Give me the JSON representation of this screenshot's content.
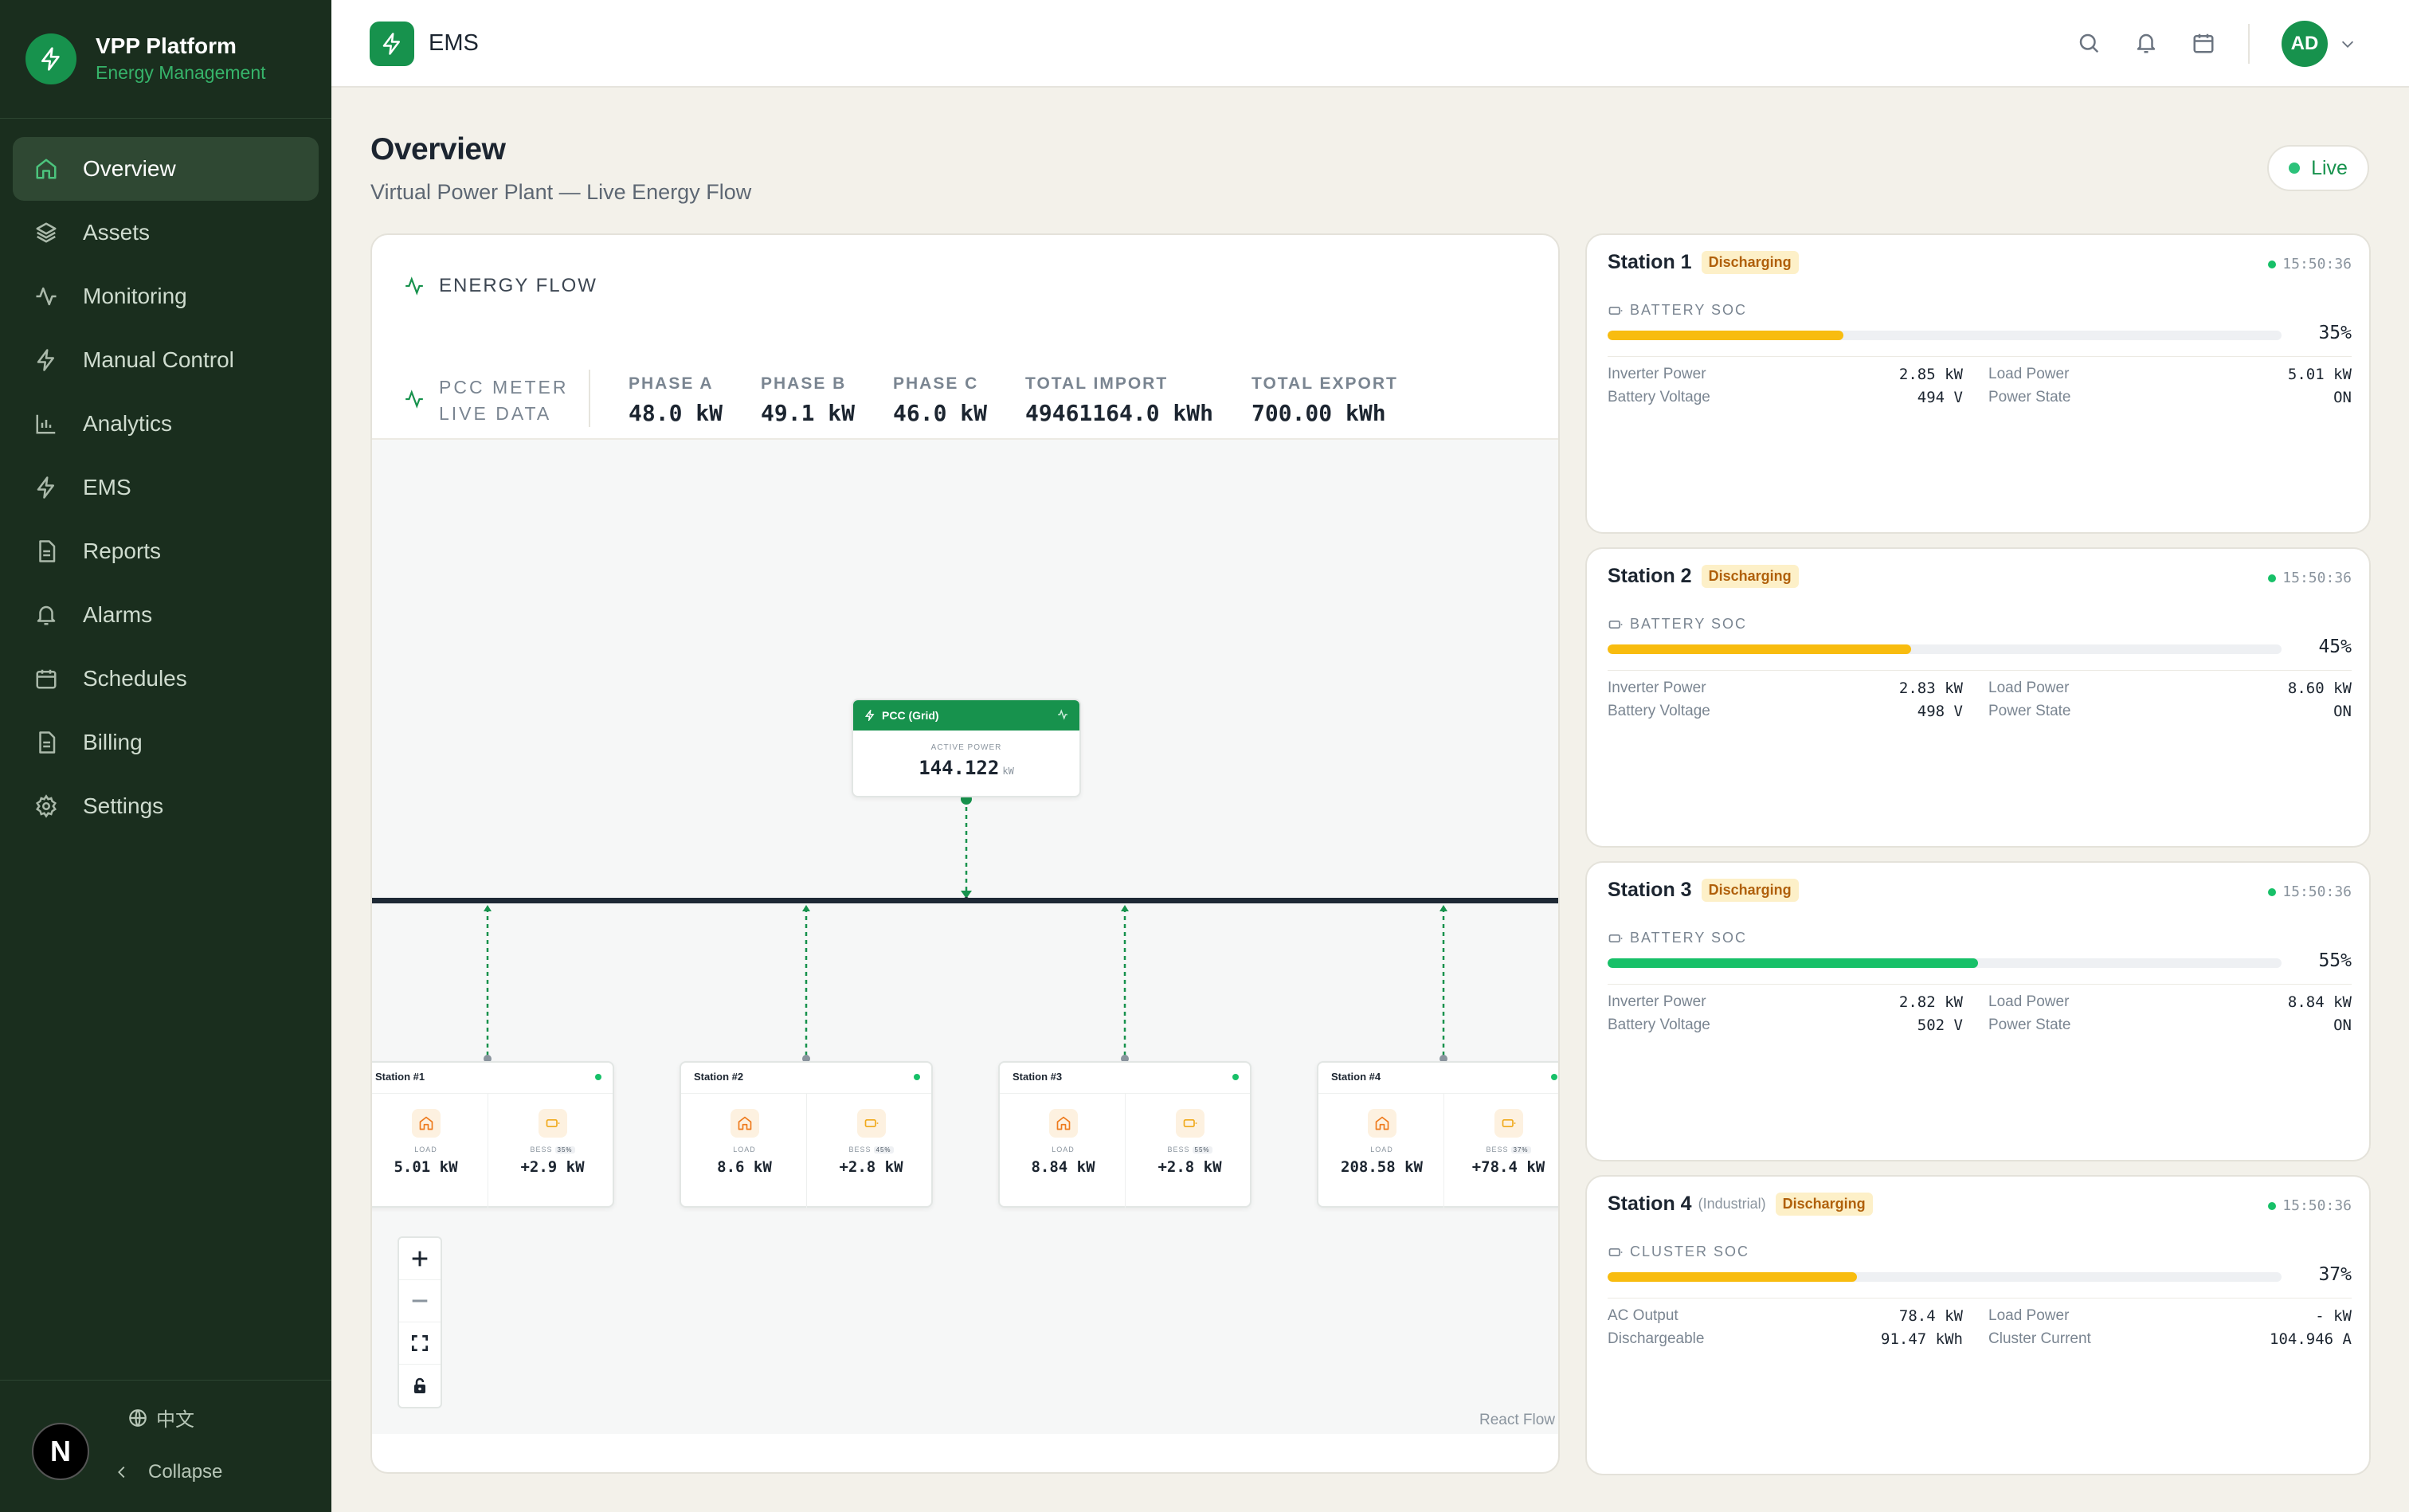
{
  "brand": {
    "title": "VPP Platform",
    "subtitle": "Energy Management"
  },
  "nav": [
    {
      "label": "Overview",
      "icon": "home-icon",
      "active": true
    },
    {
      "label": "Assets",
      "icon": "layers-icon"
    },
    {
      "label": "Monitoring",
      "icon": "activity-icon"
    },
    {
      "label": "Manual Control",
      "icon": "bolt-icon"
    },
    {
      "label": "Analytics",
      "icon": "bar-chart-icon"
    },
    {
      "label": "EMS",
      "icon": "bolt-icon"
    },
    {
      "label": "Reports",
      "icon": "document-icon"
    },
    {
      "label": "Alarms",
      "icon": "bell-icon"
    },
    {
      "label": "Schedules",
      "icon": "calendar-icon"
    },
    {
      "label": "Billing",
      "icon": "document-icon"
    },
    {
      "label": "Settings",
      "icon": "gear-icon"
    }
  ],
  "sidebar_bottom": {
    "language": "中文",
    "collapse": "Collapse",
    "badge": "N"
  },
  "topbar": {
    "title": "EMS",
    "avatar": "AD"
  },
  "page": {
    "title": "Overview",
    "subtitle": "Virtual Power Plant — Live Energy Flow",
    "live": "Live"
  },
  "flow": {
    "heading": "ENERGY FLOW",
    "meter_label_1": "PCC METER",
    "meter_label_2": "LIVE DATA",
    "metrics": [
      {
        "key": "PHASE A",
        "value": "48.0 kW"
      },
      {
        "key": "PHASE B",
        "value": "49.1 kW"
      },
      {
        "key": "PHASE C",
        "value": "46.0 kW"
      },
      {
        "key": "TOTAL IMPORT",
        "value": "49461164.0 kWh"
      },
      {
        "key": "TOTAL EXPORT",
        "value": "700.00 kWh"
      }
    ],
    "pcc": {
      "title": "PCC (Grid)",
      "label": "ACTIVE POWER",
      "value": "144.122",
      "unit": "kW"
    },
    "stations": [
      {
        "title": "Station #1",
        "load_label": "LOAD",
        "load": "5.01 kW",
        "bess_label": "BESS",
        "bess_pct": "35%",
        "bess": "+2.9 kW"
      },
      {
        "title": "Station #2",
        "load_label": "LOAD",
        "load": "8.6 kW",
        "bess_label": "BESS",
        "bess_pct": "45%",
        "bess": "+2.8 kW"
      },
      {
        "title": "Station #3",
        "load_label": "LOAD",
        "load": "8.84 kW",
        "bess_label": "BESS",
        "bess_pct": "55%",
        "bess": "+2.8 kW"
      },
      {
        "title": "Station #4",
        "load_label": "LOAD",
        "load": "208.58 kW",
        "bess_label": "BESS",
        "bess_pct": "37%",
        "bess": "+78.4 kW"
      }
    ],
    "attribution": "React Flow"
  },
  "cards": [
    {
      "title": "Station 1",
      "sub": "",
      "status": "Discharging",
      "time": "15:50:36",
      "soc_label": "BATTERY SOC",
      "soc": 35,
      "soc_text": "35%",
      "bar_color": "#f8bc0f",
      "k1": "Inverter Power",
      "v1": "2.85 kW",
      "k2": "Battery Voltage",
      "v2": "494 V",
      "k3": "Load Power",
      "v3": "5.01 kW",
      "k4": "Power State",
      "v4": "ON"
    },
    {
      "title": "Station 2",
      "sub": "",
      "status": "Discharging",
      "time": "15:50:36",
      "soc_label": "BATTERY SOC",
      "soc": 45,
      "soc_text": "45%",
      "bar_color": "#f8bc0f",
      "k1": "Inverter Power",
      "v1": "2.83 kW",
      "k2": "Battery Voltage",
      "v2": "498 V",
      "k3": "Load Power",
      "v3": "8.60 kW",
      "k4": "Power State",
      "v4": "ON"
    },
    {
      "title": "Station 3",
      "sub": "",
      "status": "Discharging",
      "time": "15:50:36",
      "soc_label": "BATTERY SOC",
      "soc": 55,
      "soc_text": "55%",
      "bar_color": "#17c068",
      "k1": "Inverter Power",
      "v1": "2.82 kW",
      "k2": "Battery Voltage",
      "v2": "502 V",
      "k3": "Load Power",
      "v3": "8.84 kW",
      "k4": "Power State",
      "v4": "ON"
    },
    {
      "title": "Station 4",
      "sub": "(Industrial)",
      "status": "Discharging",
      "time": "15:50:36",
      "soc_label": "CLUSTER SOC",
      "soc": 37,
      "soc_text": "37%",
      "bar_color": "#f8bc0f",
      "k1": "AC Output",
      "v1": "78.4 kW",
      "k2": "Dischargeable",
      "v2": "91.47 kWh",
      "k3": "Load Power",
      "v3": "- kW",
      "k4": "Cluster Current",
      "v4": "104.946 A"
    }
  ],
  "colors": {
    "accent": "#17924d",
    "sidebar": "#1a2e1e",
    "warning": "#f8bc0f",
    "ok": "#17c068"
  }
}
